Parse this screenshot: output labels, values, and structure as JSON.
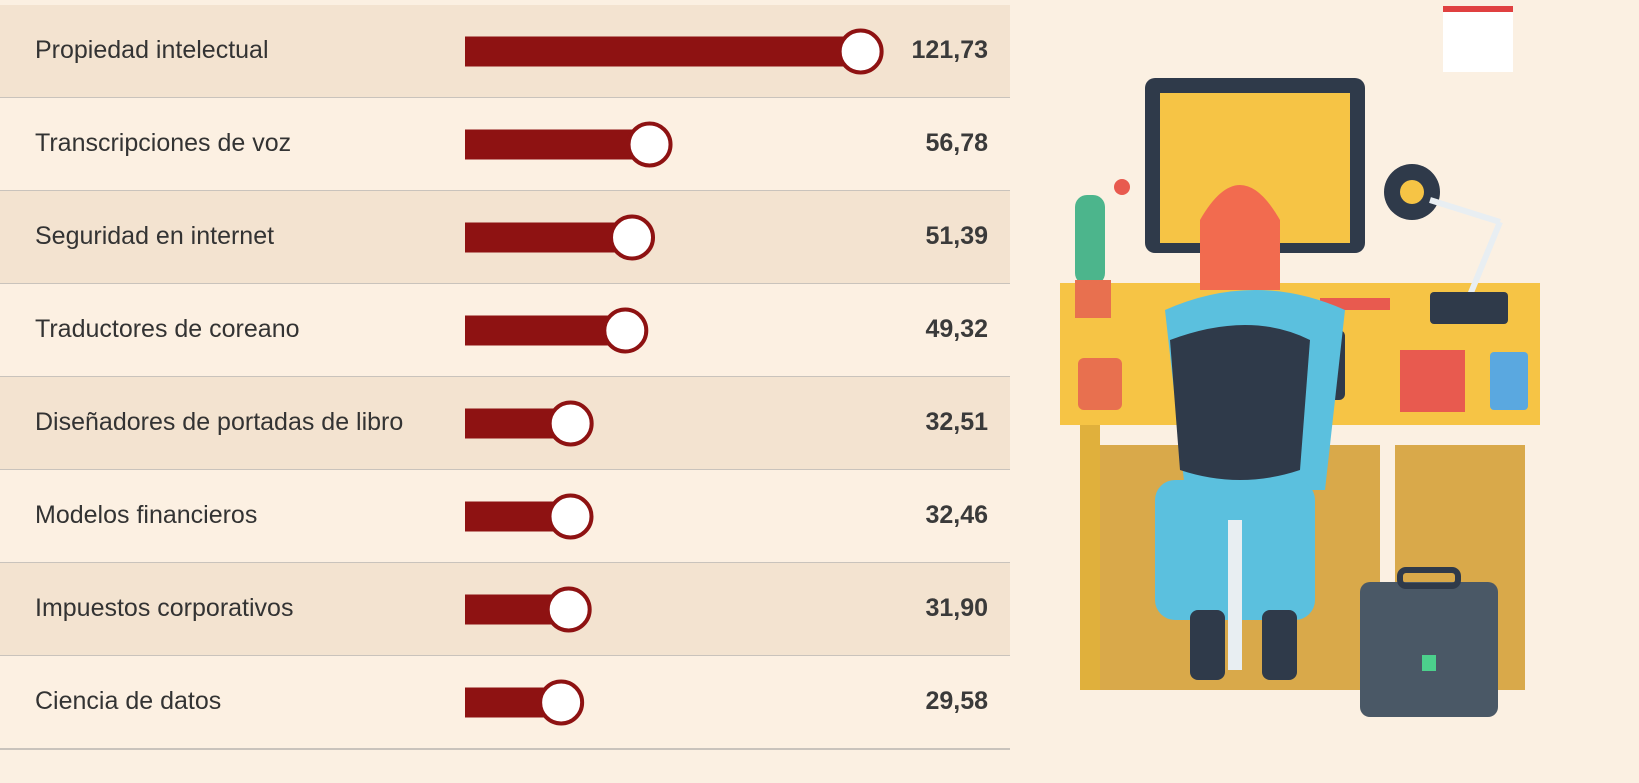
{
  "chart_data": {
    "type": "bar",
    "orientation": "horizontal",
    "categories": [
      "Propiedad intelectual",
      "Transcripciones de voz",
      "Seguridad en internet",
      "Traductores de coreano",
      "Diseñadores de portadas de libro",
      "Modelos financieros",
      "Impuestos corporativos",
      "Ciencia de datos"
    ],
    "values": [
      121.73,
      56.78,
      51.39,
      49.32,
      32.51,
      32.46,
      31.9,
      29.58
    ],
    "value_labels": [
      "121,73",
      "56,78",
      "51,39",
      "49,32",
      "32,51",
      "32,46",
      "31,90",
      "29,58"
    ],
    "color": "#8e1212"
  }
}
